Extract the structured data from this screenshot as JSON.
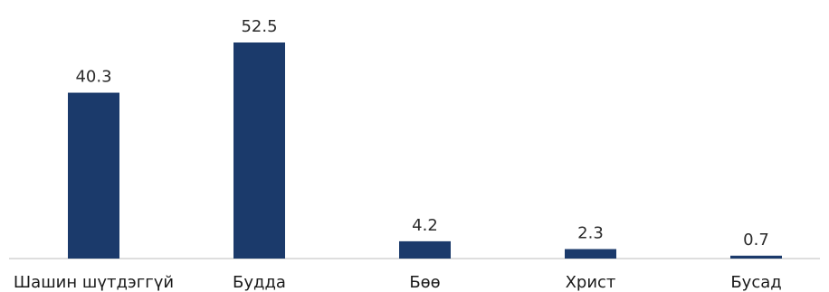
{
  "chart_data": {
    "type": "bar",
    "categories": [
      "Шашин шүтдэггүй",
      "Будда",
      "Бөө",
      "Христ",
      "Бусад"
    ],
    "values": [
      40.3,
      52.5,
      4.2,
      2.3,
      0.7
    ],
    "value_labels": [
      "40.3",
      "52.5",
      "4.2",
      "2.3",
      "0.7"
    ],
    "title": "",
    "xlabel": "",
    "ylabel": "",
    "ylim": [
      0,
      52.5
    ],
    "grid": false,
    "bar_color": "#1b3a6b"
  }
}
